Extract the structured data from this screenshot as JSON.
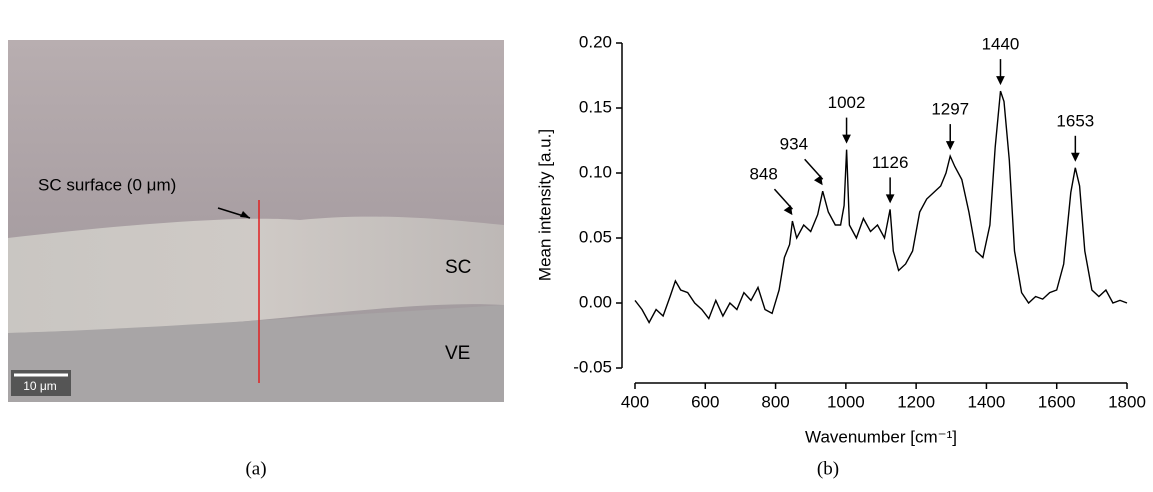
{
  "image_panel": {
    "surface_label": "SC surface (0 μm)",
    "sc_label": "SC",
    "ve_label": "VE",
    "scale_bar": "10 μm",
    "panel_label": "(a)"
  },
  "chart_data": {
    "type": "line",
    "panel_label": "(b)",
    "x_label": "Wavenumber [cm⁻¹]",
    "y_label": "Mean intensity [a.u.]",
    "color": "#000000",
    "x": [
      400,
      420,
      440,
      460,
      480,
      500,
      515,
      530,
      550,
      570,
      590,
      610,
      630,
      650,
      670,
      690,
      710,
      730,
      750,
      770,
      790,
      810,
      825,
      840,
      848,
      860,
      880,
      900,
      920,
      934,
      950,
      970,
      985,
      995,
      1002,
      1010,
      1030,
      1050,
      1070,
      1090,
      1110,
      1126,
      1135,
      1150,
      1170,
      1190,
      1210,
      1230,
      1250,
      1270,
      1285,
      1297,
      1310,
      1330,
      1350,
      1370,
      1390,
      1410,
      1425,
      1440,
      1450,
      1465,
      1480,
      1500,
      1520,
      1540,
      1560,
      1580,
      1600,
      1620,
      1640,
      1653,
      1665,
      1680,
      1700,
      1720,
      1740,
      1760,
      1780,
      1800
    ],
    "values": [
      0.002,
      -0.005,
      -0.015,
      -0.005,
      -0.01,
      0.005,
      0.017,
      0.01,
      0.008,
      0.0,
      -0.005,
      -0.012,
      0.002,
      -0.01,
      0.0,
      -0.005,
      0.008,
      0.002,
      0.012,
      -0.005,
      -0.008,
      0.01,
      0.035,
      0.045,
      0.063,
      0.05,
      0.06,
      0.055,
      0.068,
      0.086,
      0.07,
      0.06,
      0.06,
      0.075,
      0.118,
      0.06,
      0.05,
      0.065,
      0.055,
      0.06,
      0.05,
      0.072,
      0.04,
      0.025,
      0.03,
      0.04,
      0.07,
      0.08,
      0.085,
      0.09,
      0.1,
      0.113,
      0.105,
      0.095,
      0.07,
      0.04,
      0.035,
      0.06,
      0.12,
      0.163,
      0.155,
      0.11,
      0.04,
      0.008,
      0.0,
      0.005,
      0.003,
      0.008,
      0.01,
      0.03,
      0.085,
      0.104,
      0.09,
      0.04,
      0.01,
      0.005,
      0.01,
      0.0,
      0.002,
      0.0
    ],
    "xlim": [
      400,
      1800
    ],
    "xticks": [
      400,
      600,
      800,
      1000,
      1200,
      1400,
      1600,
      1800
    ],
    "ylim": [
      -0.05,
      0.2
    ],
    "yticks": [
      {
        "value": -0.05,
        "label": "-0.05"
      },
      {
        "value": 0,
        "label": "0.00"
      },
      {
        "value": 0.05,
        "label": "0.05"
      },
      {
        "value": 0.1,
        "label": "0.10"
      },
      {
        "value": 0.15,
        "label": "0.15"
      },
      {
        "value": 0.2,
        "label": "0.20"
      }
    ],
    "annotations": [
      {
        "text": "848",
        "x": 848
      },
      {
        "text": "934",
        "x": 934
      },
      {
        "text": "1002",
        "x": 1002
      },
      {
        "text": "1126",
        "x": 1126
      },
      {
        "text": "1297",
        "x": 1297
      },
      {
        "text": "1440",
        "x": 1440
      },
      {
        "text": "1653",
        "x": 1653
      }
    ]
  }
}
